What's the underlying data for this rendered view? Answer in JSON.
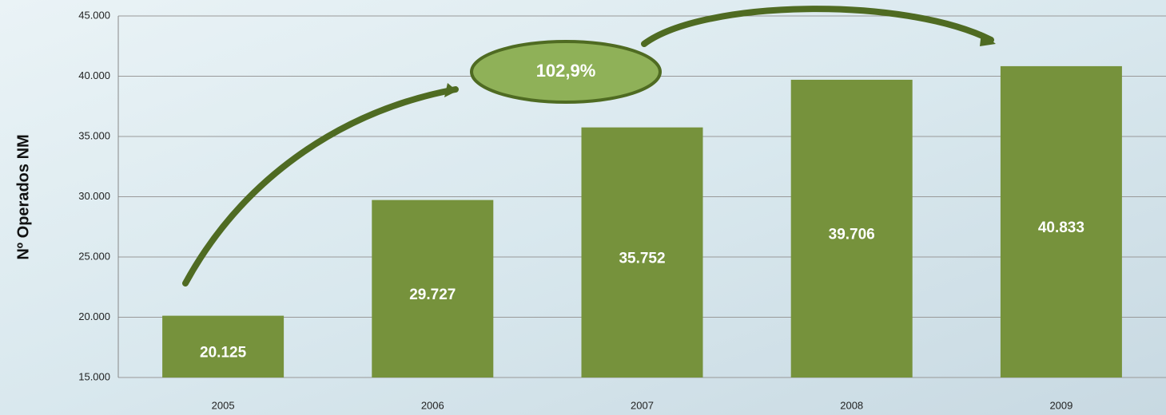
{
  "chart_data": {
    "type": "bar",
    "y_label": "Nº Operados NM",
    "annotation": "102,9%",
    "categories": [
      "2005",
      "2006",
      "2007",
      "2008",
      "2009"
    ],
    "values": [
      20125,
      29727,
      35752,
      39706,
      40833
    ],
    "value_labels": [
      "20.125",
      "29.727",
      "35.752",
      "39.706",
      "40.833"
    ],
    "color": "#76923c",
    "ylim": [
      15000,
      45000
    ],
    "yticks": [
      {
        "value": 15000,
        "label": "15.000"
      },
      {
        "value": 20000,
        "label": "20.000"
      },
      {
        "value": 25000,
        "label": "25.000"
      },
      {
        "value": 30000,
        "label": "30.000"
      },
      {
        "value": 35000,
        "label": "35.000"
      },
      {
        "value": 40000,
        "label": "40.000"
      },
      {
        "value": 45000,
        "label": "45.000"
      }
    ],
    "grid": true
  }
}
